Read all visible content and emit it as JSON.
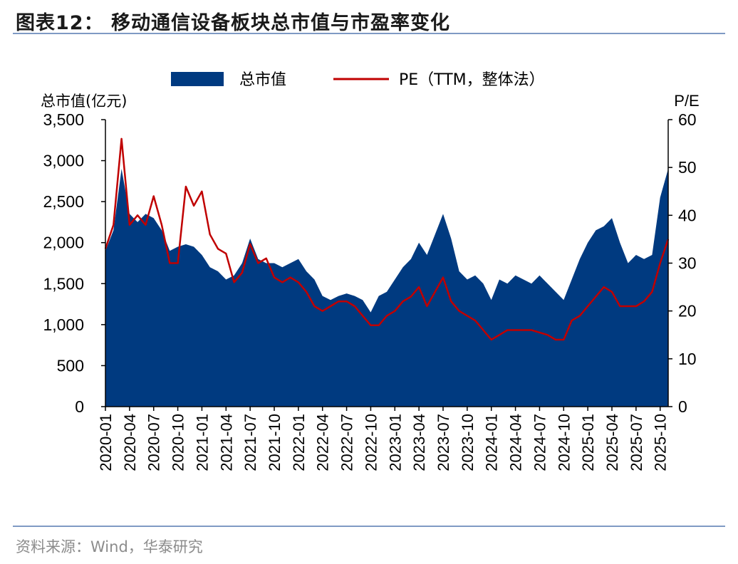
{
  "title": "图表12：  移动通信设备板块总市值与市盈率变化",
  "source": "资料来源：Wind，华泰研究",
  "colors": {
    "area": "#003a80",
    "line": "#c00000",
    "rule": "#7f9ac4"
  },
  "chart_data": {
    "type": "area",
    "left_axis_label": "总市值(亿元)",
    "right_axis_label": "P/E",
    "ylim_left": [
      0,
      3500
    ],
    "ylim_right": [
      0,
      60
    ],
    "yticks_left": [
      "0",
      "500",
      "1,000",
      "1,500",
      "2,000",
      "2,500",
      "3,000",
      "3,500"
    ],
    "yticks_right": [
      "0",
      "10",
      "20",
      "30",
      "40",
      "50",
      "60"
    ],
    "xticks": [
      "2020-01",
      "2020-04",
      "2020-07",
      "2020-10",
      "2021-01",
      "2021-04",
      "2021-07",
      "2021-10",
      "2022-01",
      "2022-04",
      "2022-07",
      "2022-10",
      "2023-01",
      "2023-04",
      "2023-07",
      "2023-10",
      "2024-01",
      "2024-04",
      "2024-07",
      "2024-10",
      "2025-01",
      "2025-04",
      "2025-07",
      "2025-10"
    ],
    "legend": {
      "position": "top",
      "items": [
        "总市值",
        "PE（TTM，整体法）"
      ]
    },
    "series": [
      {
        "name": "总市值",
        "axis": "left",
        "type": "area",
        "x": [
          "2020-01",
          "2020-02",
          "2020-03",
          "2020-04",
          "2020-05",
          "2020-06",
          "2020-07",
          "2020-08",
          "2020-09",
          "2020-10",
          "2020-11",
          "2020-12",
          "2021-01",
          "2021-02",
          "2021-03",
          "2021-04",
          "2021-05",
          "2021-06",
          "2021-07",
          "2021-08",
          "2021-09",
          "2021-10",
          "2021-11",
          "2021-12",
          "2022-01",
          "2022-02",
          "2022-03",
          "2022-04",
          "2022-05",
          "2022-06",
          "2022-07",
          "2022-08",
          "2022-09",
          "2022-10",
          "2022-11",
          "2022-12",
          "2023-01",
          "2023-02",
          "2023-03",
          "2023-04",
          "2023-05",
          "2023-06",
          "2023-07",
          "2023-08",
          "2023-09",
          "2023-10",
          "2023-11",
          "2023-12",
          "2024-01",
          "2024-02",
          "2024-03",
          "2024-04",
          "2024-05",
          "2024-06",
          "2024-07",
          "2024-08",
          "2024-09",
          "2024-10",
          "2024-11",
          "2024-12",
          "2025-01",
          "2025-02",
          "2025-03",
          "2025-04",
          "2025-05",
          "2025-06",
          "2025-07",
          "2025-08",
          "2025-09",
          "2025-10",
          "2025-11"
        ],
        "values": [
          1900,
          2150,
          2900,
          2350,
          2250,
          2350,
          2300,
          2150,
          1900,
          1950,
          1980,
          1950,
          1850,
          1700,
          1650,
          1550,
          1600,
          1750,
          2050,
          1800,
          1750,
          1750,
          1700,
          1750,
          1800,
          1650,
          1550,
          1350,
          1300,
          1350,
          1380,
          1350,
          1300,
          1150,
          1350,
          1400,
          1550,
          1700,
          1800,
          2000,
          1850,
          2100,
          2350,
          2050,
          1650,
          1550,
          1600,
          1500,
          1300,
          1550,
          1500,
          1600,
          1550,
          1500,
          1600,
          1500,
          1400,
          1300,
          1550,
          1800,
          2000,
          2150,
          2200,
          2300,
          2000,
          1750,
          1850,
          1800,
          1850,
          2550,
          2900
        ]
      },
      {
        "name": "PE（TTM，整体法）",
        "axis": "right",
        "type": "line",
        "x": [
          "2020-01",
          "2020-02",
          "2020-03",
          "2020-04",
          "2020-05",
          "2020-06",
          "2020-07",
          "2020-08",
          "2020-09",
          "2020-10",
          "2020-11",
          "2020-12",
          "2021-01",
          "2021-02",
          "2021-03",
          "2021-04",
          "2021-05",
          "2021-06",
          "2021-07",
          "2021-08",
          "2021-09",
          "2021-10",
          "2021-11",
          "2021-12",
          "2022-01",
          "2022-02",
          "2022-03",
          "2022-04",
          "2022-05",
          "2022-06",
          "2022-07",
          "2022-08",
          "2022-09",
          "2022-10",
          "2022-11",
          "2022-12",
          "2023-01",
          "2023-02",
          "2023-03",
          "2023-04",
          "2023-05",
          "2023-06",
          "2023-07",
          "2023-08",
          "2023-09",
          "2023-10",
          "2023-11",
          "2023-12",
          "2024-01",
          "2024-02",
          "2024-03",
          "2024-04",
          "2024-05",
          "2024-06",
          "2024-07",
          "2024-08",
          "2024-09",
          "2024-10",
          "2024-11",
          "2024-12",
          "2025-01",
          "2025-02",
          "2025-03",
          "2025-04",
          "2025-05",
          "2025-06",
          "2025-07",
          "2025-08",
          "2025-09",
          "2025-10",
          "2025-11"
        ],
        "values": [
          33,
          38,
          56,
          38,
          40,
          38,
          44,
          38,
          30,
          30,
          46,
          42,
          45,
          36,
          33,
          32,
          26,
          28,
          34,
          30,
          31,
          27,
          26,
          27,
          26,
          24,
          21,
          20,
          21,
          22,
          22,
          21,
          19,
          17,
          17,
          19,
          20,
          22,
          23,
          25,
          21,
          24,
          27,
          22,
          20,
          19,
          18,
          16,
          14,
          15,
          16,
          16,
          16,
          16,
          15.5,
          15,
          14,
          14,
          18,
          19,
          21,
          23,
          25,
          24,
          21,
          21,
          21,
          22,
          24,
          30,
          35
        ]
      }
    ]
  }
}
